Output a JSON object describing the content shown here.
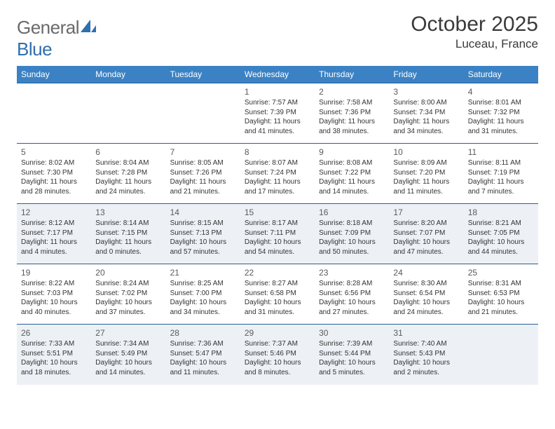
{
  "brand": {
    "part1": "General",
    "part2": "Blue"
  },
  "title": "October 2025",
  "location": "Luceau, France",
  "header_bg": "#3b82c4",
  "header_fg": "#ffffff",
  "row_divider_color": "#2a5f94",
  "alt_row_bg": "#edf1f5",
  "text_color": "#333333",
  "logo_gray": "#6a6a6a",
  "logo_blue": "#2f6fae",
  "weekdays": [
    "Sunday",
    "Monday",
    "Tuesday",
    "Wednesday",
    "Thursday",
    "Friday",
    "Saturday"
  ],
  "weeks": [
    [
      null,
      null,
      null,
      {
        "n": "1",
        "sr": "7:57 AM",
        "ss": "7:39 PM",
        "dl": "11 hours and 41 minutes."
      },
      {
        "n": "2",
        "sr": "7:58 AM",
        "ss": "7:36 PM",
        "dl": "11 hours and 38 minutes."
      },
      {
        "n": "3",
        "sr": "8:00 AM",
        "ss": "7:34 PM",
        "dl": "11 hours and 34 minutes."
      },
      {
        "n": "4",
        "sr": "8:01 AM",
        "ss": "7:32 PM",
        "dl": "11 hours and 31 minutes."
      }
    ],
    [
      {
        "n": "5",
        "sr": "8:02 AM",
        "ss": "7:30 PM",
        "dl": "11 hours and 28 minutes."
      },
      {
        "n": "6",
        "sr": "8:04 AM",
        "ss": "7:28 PM",
        "dl": "11 hours and 24 minutes."
      },
      {
        "n": "7",
        "sr": "8:05 AM",
        "ss": "7:26 PM",
        "dl": "11 hours and 21 minutes."
      },
      {
        "n": "8",
        "sr": "8:07 AM",
        "ss": "7:24 PM",
        "dl": "11 hours and 17 minutes."
      },
      {
        "n": "9",
        "sr": "8:08 AM",
        "ss": "7:22 PM",
        "dl": "11 hours and 14 minutes."
      },
      {
        "n": "10",
        "sr": "8:09 AM",
        "ss": "7:20 PM",
        "dl": "11 hours and 11 minutes."
      },
      {
        "n": "11",
        "sr": "8:11 AM",
        "ss": "7:19 PM",
        "dl": "11 hours and 7 minutes."
      }
    ],
    [
      {
        "n": "12",
        "sr": "8:12 AM",
        "ss": "7:17 PM",
        "dl": "11 hours and 4 minutes."
      },
      {
        "n": "13",
        "sr": "8:14 AM",
        "ss": "7:15 PM",
        "dl": "11 hours and 0 minutes."
      },
      {
        "n": "14",
        "sr": "8:15 AM",
        "ss": "7:13 PM",
        "dl": "10 hours and 57 minutes."
      },
      {
        "n": "15",
        "sr": "8:17 AM",
        "ss": "7:11 PM",
        "dl": "10 hours and 54 minutes."
      },
      {
        "n": "16",
        "sr": "8:18 AM",
        "ss": "7:09 PM",
        "dl": "10 hours and 50 minutes."
      },
      {
        "n": "17",
        "sr": "8:20 AM",
        "ss": "7:07 PM",
        "dl": "10 hours and 47 minutes."
      },
      {
        "n": "18",
        "sr": "8:21 AM",
        "ss": "7:05 PM",
        "dl": "10 hours and 44 minutes."
      }
    ],
    [
      {
        "n": "19",
        "sr": "8:22 AM",
        "ss": "7:03 PM",
        "dl": "10 hours and 40 minutes."
      },
      {
        "n": "20",
        "sr": "8:24 AM",
        "ss": "7:02 PM",
        "dl": "10 hours and 37 minutes."
      },
      {
        "n": "21",
        "sr": "8:25 AM",
        "ss": "7:00 PM",
        "dl": "10 hours and 34 minutes."
      },
      {
        "n": "22",
        "sr": "8:27 AM",
        "ss": "6:58 PM",
        "dl": "10 hours and 31 minutes."
      },
      {
        "n": "23",
        "sr": "8:28 AM",
        "ss": "6:56 PM",
        "dl": "10 hours and 27 minutes."
      },
      {
        "n": "24",
        "sr": "8:30 AM",
        "ss": "6:54 PM",
        "dl": "10 hours and 24 minutes."
      },
      {
        "n": "25",
        "sr": "8:31 AM",
        "ss": "6:53 PM",
        "dl": "10 hours and 21 minutes."
      }
    ],
    [
      {
        "n": "26",
        "sr": "7:33 AM",
        "ss": "5:51 PM",
        "dl": "10 hours and 18 minutes."
      },
      {
        "n": "27",
        "sr": "7:34 AM",
        "ss": "5:49 PM",
        "dl": "10 hours and 14 minutes."
      },
      {
        "n": "28",
        "sr": "7:36 AM",
        "ss": "5:47 PM",
        "dl": "10 hours and 11 minutes."
      },
      {
        "n": "29",
        "sr": "7:37 AM",
        "ss": "5:46 PM",
        "dl": "10 hours and 8 minutes."
      },
      {
        "n": "30",
        "sr": "7:39 AM",
        "ss": "5:44 PM",
        "dl": "10 hours and 5 minutes."
      },
      {
        "n": "31",
        "sr": "7:40 AM",
        "ss": "5:43 PM",
        "dl": "10 hours and 2 minutes."
      },
      null
    ]
  ],
  "labels": {
    "sunrise": "Sunrise: ",
    "sunset": "Sunset: ",
    "daylight": "Daylight: "
  }
}
